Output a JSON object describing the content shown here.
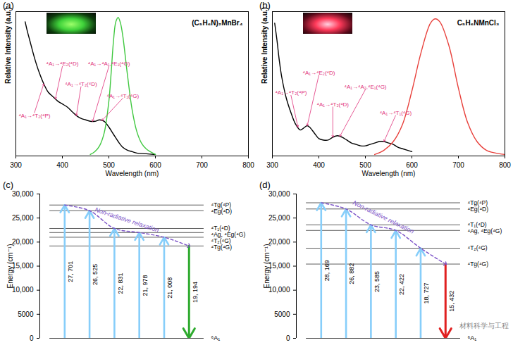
{
  "chart_data": [
    {
      "type": "line",
      "label": "(a)",
      "title": "(C₅H₆N)₂MnBr₄",
      "xlabel": "Wavelength (nm)",
      "ylabel": "Relative Intensity (a.u.)",
      "xlim": [
        300,
        800
      ],
      "xticks": [
        300,
        400,
        500,
        600,
        700,
        800
      ],
      "ylim": [
        0,
        1
      ],
      "tick_labels": "x",
      "series": [
        {
          "color": "#000000",
          "x": [
            320,
            325,
            330,
            340,
            350,
            360,
            370,
            380,
            390,
            400,
            410,
            420,
            430,
            440,
            450,
            460,
            470,
            480,
            490,
            500,
            510,
            520,
            530,
            540,
            550,
            560,
            580,
            600
          ],
          "values": [
            0.93,
            0.86,
            0.8,
            0.68,
            0.58,
            0.5,
            0.44,
            0.41,
            0.38,
            0.36,
            0.34,
            0.31,
            0.28,
            0.26,
            0.25,
            0.24,
            0.24,
            0.25,
            0.24,
            0.2,
            0.15,
            0.1,
            0.06,
            0.04,
            0.03,
            0.02,
            0.015,
            0.01
          ]
        },
        {
          "color": "#40c840",
          "x": [
            460,
            470,
            480,
            490,
            500,
            505,
            510,
            515,
            520,
            525,
            530,
            540,
            550,
            560,
            570,
            580,
            600
          ],
          "values": [
            0.01,
            0.03,
            0.07,
            0.16,
            0.38,
            0.58,
            0.8,
            0.93,
            0.96,
            0.92,
            0.83,
            0.56,
            0.32,
            0.17,
            0.09,
            0.05,
            0.01
          ]
        }
      ],
      "annotations": {
        "color": "#e0307a",
        "items": [
          {
            "text": "⁴A₁→⁴T₂(⁴P)",
            "x": 360
          },
          {
            "text": "⁴A₁→⁴E₂(⁴D)",
            "x": 385
          },
          {
            "text": "⁴A₁→⁴T₂(⁴D)",
            "x": 430
          },
          {
            "text": "⁴A₁→⁴A₁,⁴E₁(⁴G)",
            "x": 465
          },
          {
            "text": "⁴A₁→⁴T₁(⁴G)",
            "x": 485
          }
        ]
      }
    },
    {
      "type": "line",
      "label": "(b)",
      "title": "C₅H₆NMnCl₃",
      "xlabel": "Wavelength (nm)",
      "ylabel": "Relative Intensity (a.u.)",
      "xlim": [
        300,
        800
      ],
      "xticks": [
        300,
        400,
        500,
        600,
        700,
        800
      ],
      "ylim": [
        0,
        1
      ],
      "tick_labels": "x",
      "series": [
        {
          "color": "#000000",
          "x": [
            305,
            310,
            315,
            320,
            330,
            340,
            350,
            360,
            370,
            375,
            380,
            390,
            400,
            410,
            420,
            430,
            440,
            450,
            460,
            470,
            480,
            490,
            500,
            510,
            520,
            530,
            540,
            550,
            560,
            570,
            580,
            600
          ],
          "values": [
            0.92,
            0.8,
            0.66,
            0.55,
            0.4,
            0.3,
            0.22,
            0.18,
            0.2,
            0.21,
            0.2,
            0.16,
            0.12,
            0.11,
            0.11,
            0.13,
            0.14,
            0.13,
            0.11,
            0.09,
            0.08,
            0.07,
            0.07,
            0.08,
            0.09,
            0.1,
            0.1,
            0.09,
            0.08,
            0.06,
            0.05,
            0.03
          ]
        },
        {
          "color": "#e8413c",
          "x": [
            520,
            540,
            560,
            580,
            600,
            620,
            640,
            650,
            660,
            680,
            700,
            720,
            740,
            760,
            780,
            800
          ],
          "values": [
            0.01,
            0.04,
            0.1,
            0.22,
            0.45,
            0.72,
            0.92,
            0.95,
            0.93,
            0.76,
            0.47,
            0.23,
            0.1,
            0.04,
            0.02,
            0.01
          ]
        }
      ],
      "annotations": {
        "color": "#e0307a",
        "items": [
          {
            "text": "⁴A₁→⁴T₂(⁴P)",
            "x": 355
          },
          {
            "text": "⁴A₁→⁴E₂(⁴D)",
            "x": 375
          },
          {
            "text": "⁴A₁→⁴T₂(⁴D)",
            "x": 430
          },
          {
            "text": "⁴A₁→⁴A₂,⁴E₁(⁴G)",
            "x": 445
          },
          {
            "text": "⁴A₁→⁴T₁(⁴G)",
            "x": 540
          }
        ]
      }
    },
    {
      "type": "energy_level",
      "label": "(c)",
      "ylabel": "Energy (cm⁻¹)",
      "ylim": [
        0,
        30000
      ],
      "tick_labels": "y",
      "yticks": [
        0,
        5000,
        {
          "value": 10000,
          "label": "10,000"
        },
        {
          "value": 15000,
          "label": "15,000"
        },
        {
          "value": 20000,
          "label": "20,000"
        },
        {
          "value": 25000,
          "label": "25,000"
        },
        {
          "value": 30000,
          "label": "30,000"
        }
      ],
      "levels": [
        {
          "label": "⁴Tg(⁴P)",
          "value": 27701
        },
        {
          "label": "⁴Eg(⁴D)",
          "value": 26525
        },
        {
          "label": "⁴T₁(⁴D)",
          "value": 22831
        },
        {
          "label": "⁴Ag, ⁴Eg(⁴G)",
          "value": 21978
        },
        {
          "label": "⁴T₂(⁴G)",
          "value": 21008
        },
        {
          "label": "⁴Tg(⁴G)",
          "value": 19194
        }
      ],
      "ground": {
        "label": "⁶A₁",
        "value": 0
      },
      "excitation": {
        "color": "#87cefa",
        "values": [
          27701,
          26525,
          22831,
          21978,
          21008
        ],
        "value_labels": [
          "27, 701",
          "26, 525",
          "22, 831",
          "21, 978",
          "21, 008"
        ]
      },
      "emission": {
        "color": "#2eaa2e",
        "values": [
          19194
        ],
        "value_labels": [
          "19, 194"
        ]
      },
      "relaxation": {
        "text": "Non-radiative relaxation",
        "color": "#7b52c7",
        "line_style": "dashed"
      }
    },
    {
      "type": "energy_level",
      "label": "(d)",
      "ylabel": "Energy (cm⁻¹)",
      "ylim": [
        0,
        30000
      ],
      "tick_labels": "y",
      "yticks": [
        0,
        5000,
        {
          "value": 10000,
          "label": "10,000"
        },
        {
          "value": 15000,
          "label": "15,000"
        },
        {
          "value": 20000,
          "label": "20,000"
        },
        {
          "value": 25000,
          "label": "25,000"
        },
        {
          "value": 30000,
          "label": "30,000"
        }
      ],
      "levels": [
        {
          "label": "⁴Tg(⁴P)",
          "value": 28169
        },
        {
          "label": "⁴Eg(⁴D)",
          "value": 26882
        },
        {
          "label": "⁴T₁(⁴D)",
          "value": 23585
        },
        {
          "label": "⁴Ag, ⁴Eg(⁴G)",
          "value": 22422
        },
        {
          "label": "⁴T₂(⁴G)",
          "value": 18727
        },
        {
          "label": "⁴Tg(⁴G)",
          "value": 15432
        }
      ],
      "ground": {
        "label": "⁶A₁",
        "value": 0
      },
      "excitation": {
        "color": "#87cefa",
        "values": [
          28169,
          26882,
          23585,
          22422,
          18727
        ],
        "value_labels": [
          "28, 169",
          "26, 882",
          "23, 585",
          "22, 422",
          "18, 727"
        ]
      },
      "emission": {
        "color": "#e02020",
        "values": [
          15432
        ],
        "value_labels": [
          "15, 432"
        ]
      },
      "relaxation": {
        "text": "Non-radiative relaxation",
        "color": "#7b52c7",
        "line_style": "dashed"
      }
    }
  ],
  "watermark": "材料科学与工程"
}
